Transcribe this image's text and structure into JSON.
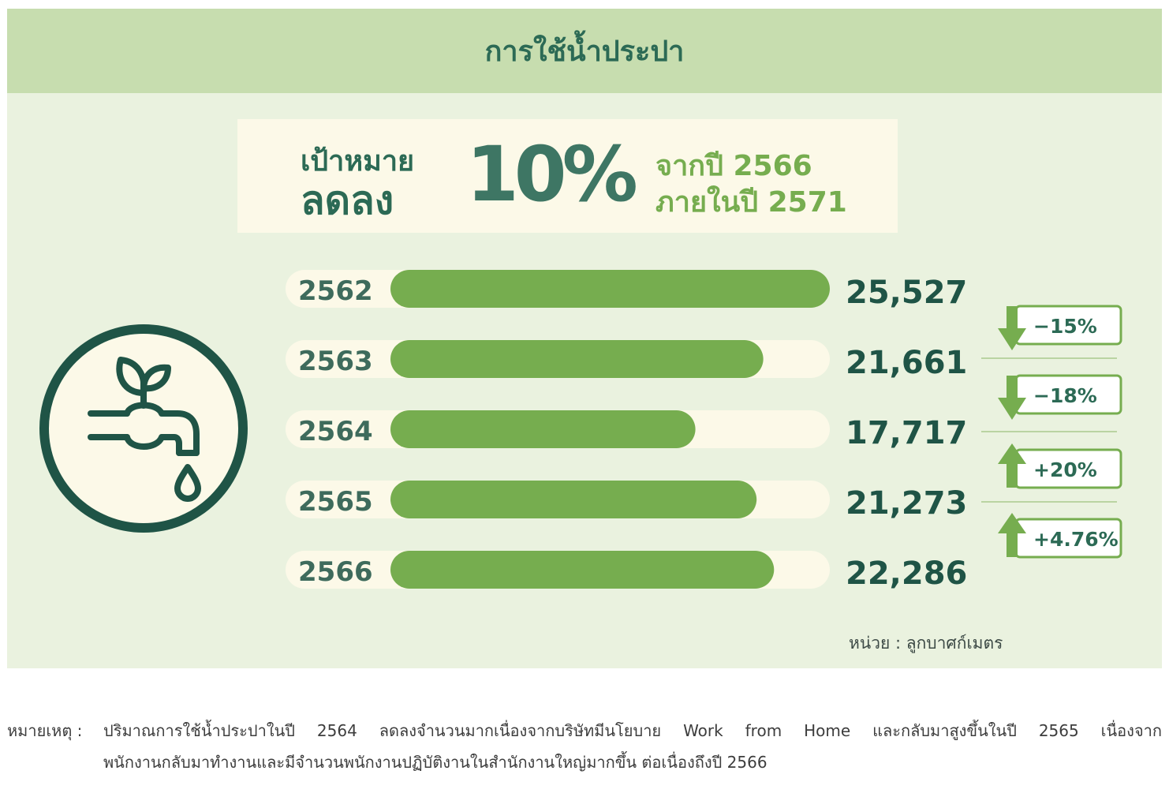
{
  "title": "การใช้น้ำประปา",
  "target": {
    "label_line1": "เป้าหมาย",
    "label_line2": "ลดลง",
    "percent": "10%",
    "from_year": "จากปี  2566",
    "within_year": "ภายในปี 2571"
  },
  "chart_data": {
    "type": "bar",
    "orientation": "horizontal",
    "categories": [
      "2562",
      "2563",
      "2564",
      "2565",
      "2566"
    ],
    "values": [
      25527,
      21661,
      17717,
      21273,
      22286
    ],
    "value_labels": [
      "25,527",
      "21,661",
      "17,717",
      "21,273",
      "22,286"
    ],
    "changes": [
      {
        "label": "−15%",
        "direction": "down"
      },
      {
        "label": "−18%",
        "direction": "down"
      },
      {
        "label": "+20%",
        "direction": "up"
      },
      {
        "label": "+4.76%",
        "direction": "up"
      }
    ],
    "unit": "หน่วย : ลูกบาศก์เมตร"
  },
  "colors": {
    "header_bg": "#c7ddaf",
    "panel_bg": "#eaf2df",
    "bar_fill": "#76ad4f",
    "bar_track": "#fcf9e8",
    "dark_green": "#1f5446",
    "accent_green": "#76ad4f"
  },
  "icon": "water-tap-with-sprout-icon",
  "note": {
    "label": "หมายเหตุ :",
    "line1": "ปริมาณการใช้น้ำประปาในปี 2564 ลดลงจำนวนมากเนื่องจากบริษัทมีนโยบาย Work from Home และกลับมาสูงขึ้นในปี 2565 เนื่องจาก",
    "line2": "พนักงานกลับมาทำงานและมีจำนวนพนักงานปฏิบัติงานในสำนักงานใหญ่มากขึ้น ต่อเนื่องถึงปี 2566"
  }
}
